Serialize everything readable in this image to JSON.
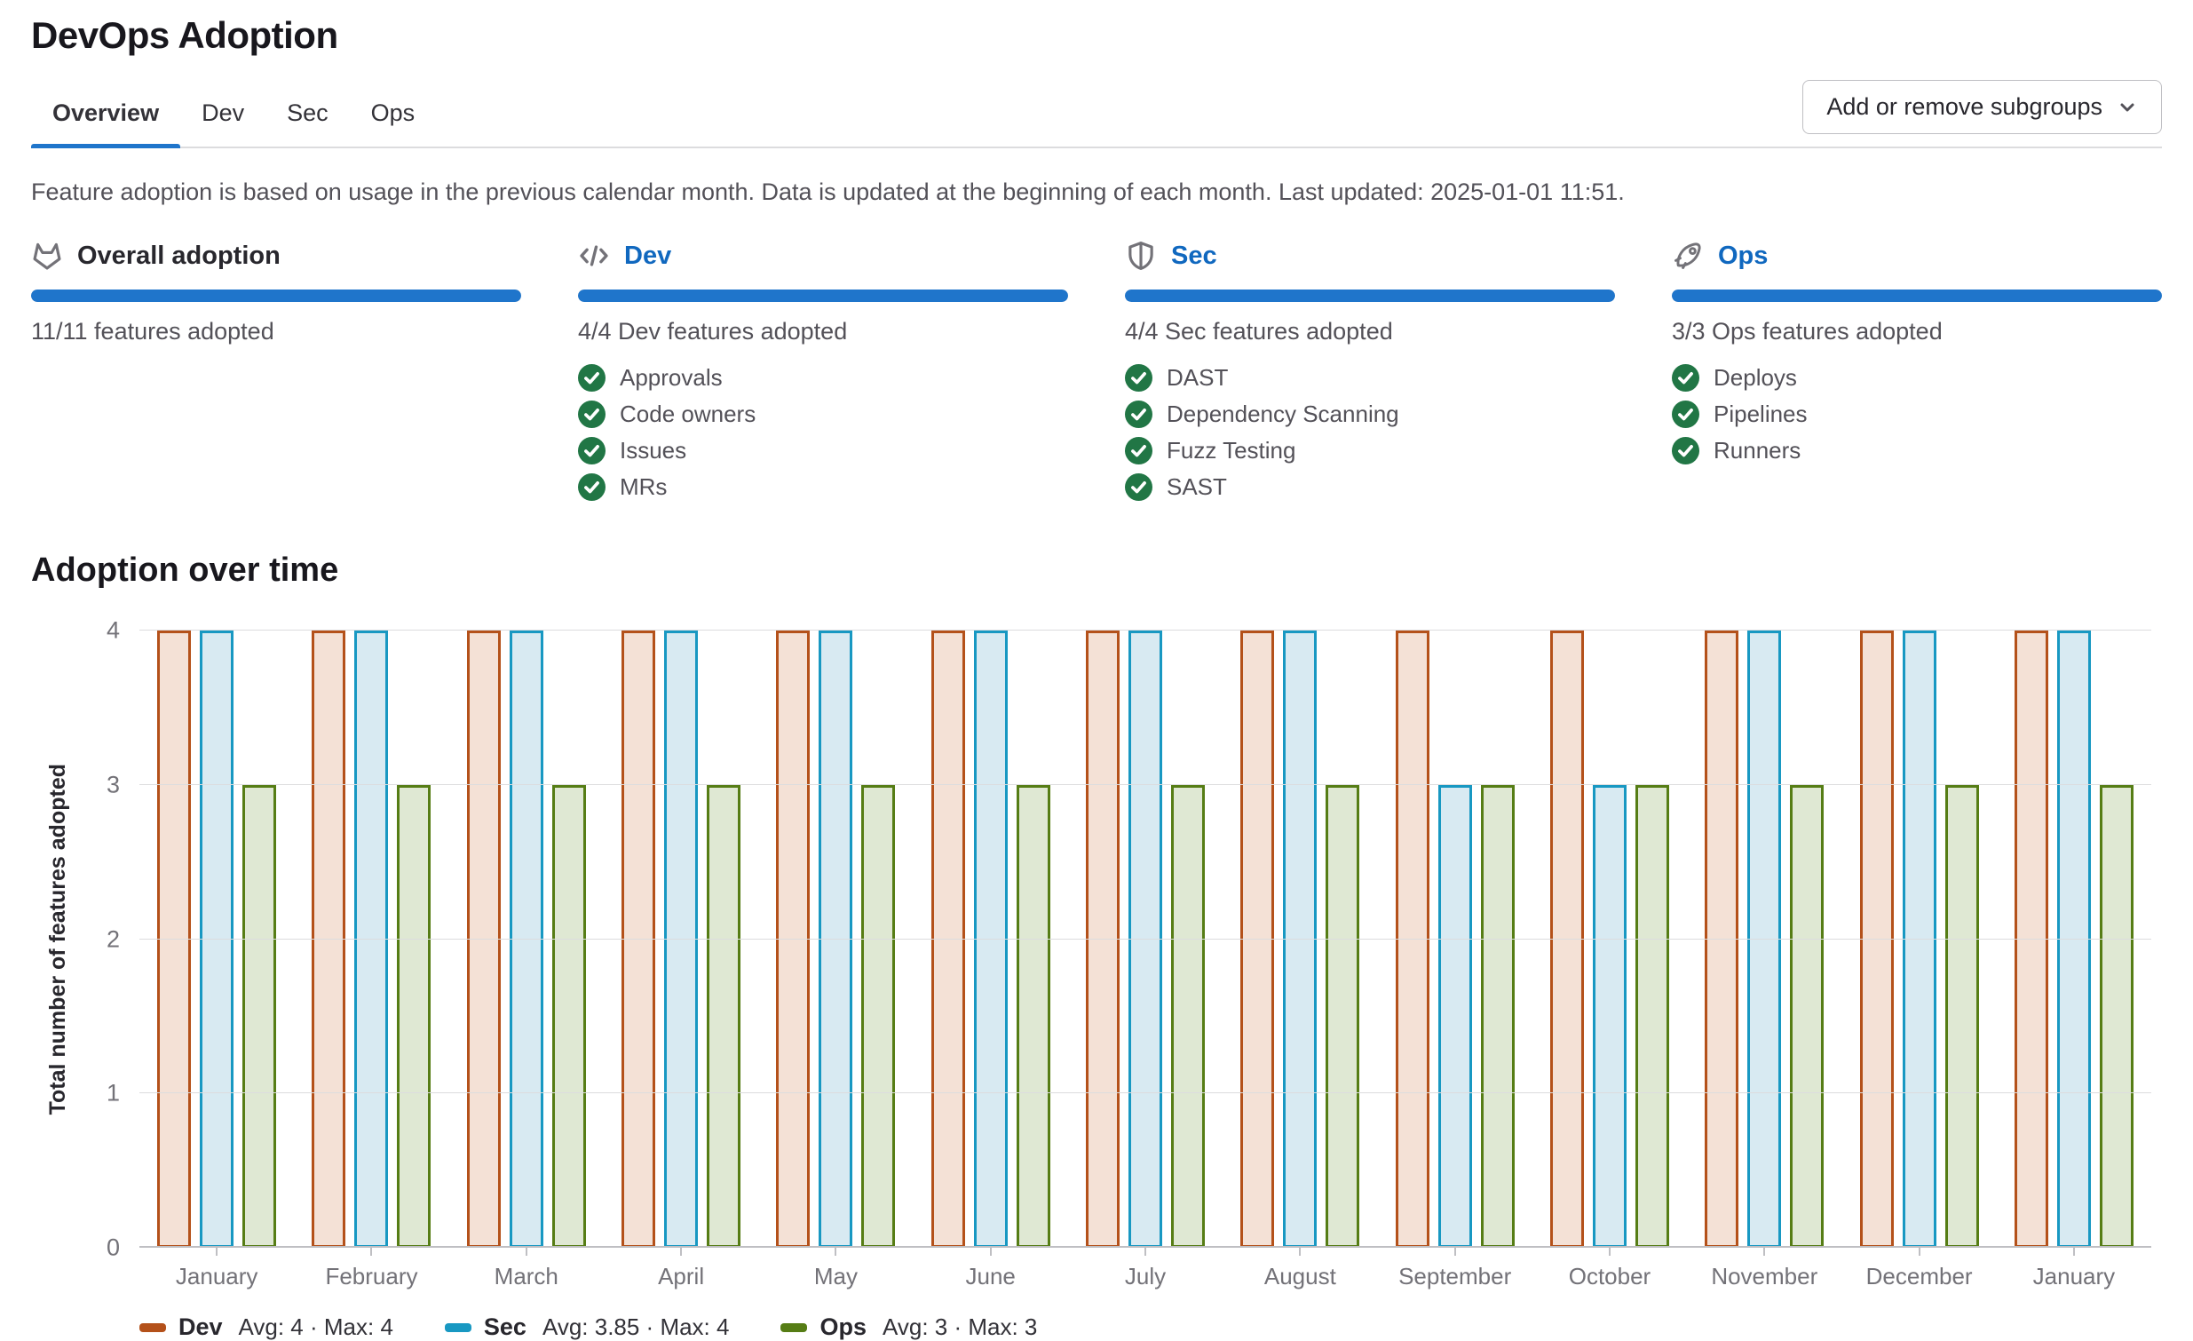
{
  "page": {
    "title": "DevOps Adoption"
  },
  "tabs": [
    {
      "label": "Overview",
      "active": true
    },
    {
      "label": "Dev",
      "active": false
    },
    {
      "label": "Sec",
      "active": false
    },
    {
      "label": "Ops",
      "active": false
    }
  ],
  "toolbar": {
    "add_remove_subgroups_label": "Add or remove subgroups"
  },
  "description": "Feature adoption is based on usage in the previous calendar month. Data is updated at the beginning of each month. Last updated: 2025-01-01 11:51.",
  "colors": {
    "accent_blue": "#1f75cb",
    "link_blue": "#1068bf",
    "success_green": "#217645",
    "grid_gray": "#dcdcde",
    "axis_gray": "#bfbfc3"
  },
  "cards": [
    {
      "title": "Overall adoption",
      "icon": "tanuki-icon",
      "is_link": false,
      "progress_percent": 100,
      "summary": "11/11 features adopted",
      "features": []
    },
    {
      "title": "Dev",
      "icon": "code-icon",
      "is_link": true,
      "progress_percent": 100,
      "summary": "4/4 Dev features adopted",
      "features": [
        "Approvals",
        "Code owners",
        "Issues",
        "MRs"
      ]
    },
    {
      "title": "Sec",
      "icon": "shield-icon",
      "is_link": true,
      "progress_percent": 100,
      "summary": "4/4 Sec features adopted",
      "features": [
        "DAST",
        "Dependency Scanning",
        "Fuzz Testing",
        "SAST"
      ]
    },
    {
      "title": "Ops",
      "icon": "rocket-icon",
      "is_link": true,
      "progress_percent": 100,
      "summary": "3/3 Ops features adopted",
      "features": [
        "Deploys",
        "Pipelines",
        "Runners"
      ]
    }
  ],
  "chart_heading": "Adoption over time",
  "chart_data": {
    "type": "bar",
    "title": "Adoption over time",
    "xlabel": "",
    "ylabel": "Total number of features adopted",
    "ylim": [
      0,
      4
    ],
    "yticks": [
      0,
      1,
      2,
      3,
      4
    ],
    "grid": true,
    "legend_position": "bottom",
    "categories": [
      "January",
      "February",
      "March",
      "April",
      "May",
      "June",
      "July",
      "August",
      "September",
      "October",
      "November",
      "December",
      "January"
    ],
    "series": [
      {
        "name": "Dev",
        "values": [
          4,
          4,
          4,
          4,
          4,
          4,
          4,
          4,
          4,
          4,
          4,
          4,
          4
        ],
        "color": "#b4511a",
        "fill": "#f4e1d6",
        "legend_stats": "Avg: 4 · Max: 4"
      },
      {
        "name": "Sec",
        "values": [
          4,
          4,
          4,
          4,
          4,
          4,
          4,
          4,
          3,
          3,
          4,
          4,
          4
        ],
        "color": "#1898c2",
        "fill": "#d8eaf2",
        "legend_stats": "Avg: 3.85 · Max: 4"
      },
      {
        "name": "Ops",
        "values": [
          3,
          3,
          3,
          3,
          3,
          3,
          3,
          3,
          3,
          3,
          3,
          3,
          3
        ],
        "color": "#567d15",
        "fill": "#dfe8d3",
        "legend_stats": "Avg: 3 · Max: 3"
      }
    ]
  }
}
